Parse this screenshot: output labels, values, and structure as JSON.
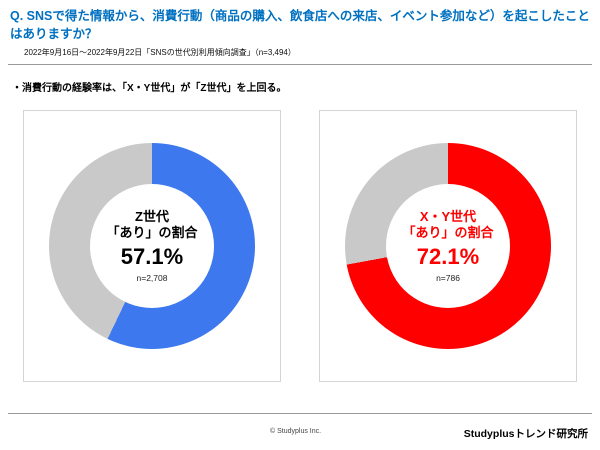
{
  "header": {
    "title": "Q. SNSで得た情報から、消費行動（商品の購入、飲食店への来店、イベント参加など）を起こしたことはありますか？",
    "subtitle": "2022年9月16日～2022年9月22日「SNSの世代別利用傾向調査」（n=3,494）"
  },
  "insight": "・消費行動の経験率は、「X・Y世代」が「Z世代」を上回る。",
  "footer": {
    "copyright": "© Studyplus Inc.",
    "brand": "Studyplusトレンド研究所"
  },
  "chart_data": [
    {
      "type": "pie",
      "subtype": "donut",
      "title": "Z世代",
      "center_label_line1": "Z世代",
      "center_label_line2": "「あり」の割合",
      "value_label": "57.1%",
      "n_label": "n=2,708",
      "text_color": "#000000",
      "start_angle_deg": 0,
      "direction": "clockwise",
      "slices": [
        {
          "label": "あり",
          "value": 57.1,
          "color": "#3d78ef"
        },
        {
          "label": "その他",
          "value": 42.9,
          "color": "#c9c9c9"
        }
      ]
    },
    {
      "type": "pie",
      "subtype": "donut",
      "title": "X・Y世代",
      "center_label_line1": "X・Y世代",
      "center_label_line2": "「あり」の割合",
      "value_label": "72.1%",
      "n_label": "n=786",
      "text_color": "#ff0000",
      "start_angle_deg": 0,
      "direction": "clockwise",
      "slices": [
        {
          "label": "あり",
          "value": 72.1,
          "color": "#ff0000"
        },
        {
          "label": "その他",
          "value": 27.9,
          "color": "#c9c9c9"
        }
      ]
    }
  ]
}
